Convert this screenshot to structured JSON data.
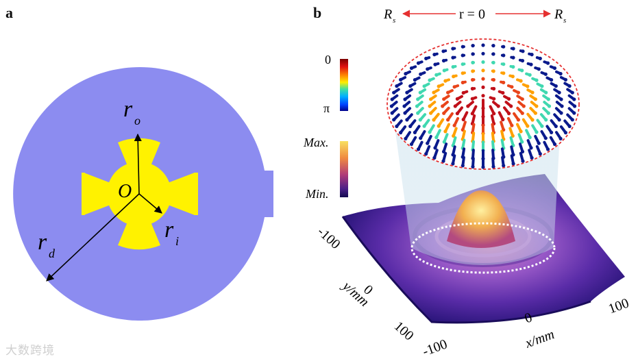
{
  "panel_a": {
    "label": "a",
    "symbols": {
      "origin": "O",
      "ro": "r",
      "ro_sub": "o",
      "ri": "r",
      "ri_sub": "i",
      "rd": "r",
      "rd_sub": "d"
    },
    "colors": {
      "disk": "#8C8CF0",
      "antenna": "#FFF200",
      "arrow": "#000000"
    }
  },
  "panel_b": {
    "label": "b",
    "radius_bar": {
      "left": "R",
      "left_sub": "s",
      "center": "r = 0",
      "right": "R",
      "right_sub": "s",
      "arrow_color": "#E53030"
    },
    "phase_colorbar": {
      "top": "0",
      "bottom": "π"
    },
    "intensity_colorbar": {
      "top": "Max.",
      "bottom": "Min."
    },
    "axes": {
      "y_label": "y/mm",
      "x_label": "x/mm",
      "y_ticks": [
        "-100",
        "0",
        "100"
      ],
      "x_ticks": [
        "-100",
        "0",
        "100"
      ]
    }
  },
  "watermark": "大数跨境"
}
